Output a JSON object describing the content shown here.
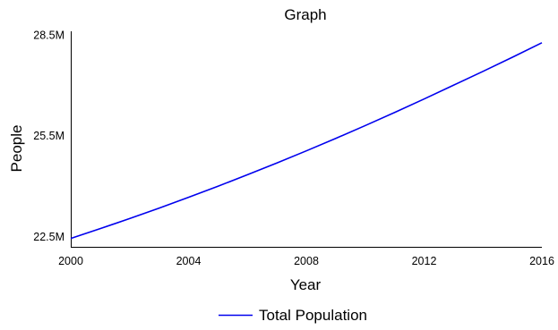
{
  "chart_data": {
    "type": "line",
    "title": "Graph",
    "xlabel": "Year",
    "ylabel": "People",
    "x_ticks": [
      2000,
      2004,
      2008,
      2012,
      2016
    ],
    "x_tick_labels": [
      "2000",
      "2004",
      "2008",
      "2012",
      "2016"
    ],
    "y_ticks": [
      22500000,
      25500000,
      28500000
    ],
    "y_tick_labels": [
      "22.5M",
      "25.5M",
      "28.5M"
    ],
    "xlim": [
      2000,
      2016
    ],
    "ylim": [
      22200000,
      28600000
    ],
    "grid": false,
    "legend_position": "bottom-center",
    "series": [
      {
        "name": "Total Population",
        "color": "#0000ee",
        "x": [
          2000,
          2001,
          2002,
          2003,
          2004,
          2005,
          2006,
          2007,
          2008,
          2009,
          2010,
          2011,
          2012,
          2013,
          2014,
          2015,
          2016
        ],
        "values": [
          22450000,
          22740000,
          23040000,
          23350000,
          23670000,
          24000000,
          24340000,
          24690000,
          25050000,
          25420000,
          25800000,
          26190000,
          26590000,
          27000000,
          27410000,
          27830000,
          28260000
        ]
      }
    ]
  }
}
